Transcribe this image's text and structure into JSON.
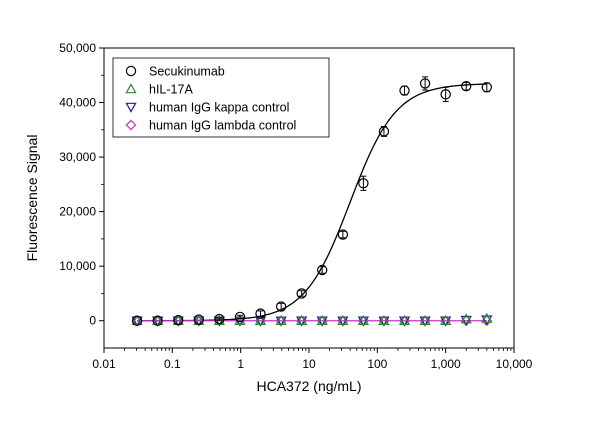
{
  "chart_data": {
    "type": "scatter",
    "xlabel": "HCA372 (ng/mL)",
    "ylabel": "Fluorescence Signal",
    "xscale": "log",
    "xlim": [
      0.01,
      10000
    ],
    "ylim": [
      -5000,
      50000
    ],
    "x_ticks": [
      0.01,
      0.1,
      1,
      10,
      100,
      1000,
      10000
    ],
    "x_tick_labels": [
      "0.01",
      "0.1",
      "1",
      "10",
      "100",
      "1,000",
      "10,000"
    ],
    "y_ticks": [
      0,
      10000,
      20000,
      30000,
      40000,
      50000
    ],
    "y_tick_labels": [
      "0",
      "10,000",
      "20,000",
      "30,000",
      "40,000",
      "50,000"
    ],
    "legend_position": "top-left",
    "grid": false,
    "x": [
      0.0305,
      0.061,
      0.122,
      0.244,
      0.488,
      0.977,
      1.95,
      3.91,
      7.81,
      15.6,
      31.3,
      62.5,
      125,
      250,
      500,
      1000,
      2000,
      4000
    ],
    "series": [
      {
        "name": "Secukinumab",
        "marker": "circle",
        "color": "#000000",
        "values": [
          0,
          0,
          100,
          200,
          300,
          700,
          1300,
          2600,
          5000,
          9300,
          15800,
          25200,
          34700,
          42200,
          43500,
          41500,
          43000,
          42800
        ],
        "errors": [
          0,
          0,
          0,
          0,
          200,
          300,
          500,
          600,
          500,
          600,
          600,
          1300,
          900,
          800,
          1200,
          1300,
          700,
          800
        ]
      },
      {
        "name": "hIL-17A",
        "marker": "triangle-up",
        "color": "#2e8b2e",
        "values": [
          0,
          0,
          0,
          0,
          0,
          0,
          0,
          0,
          0,
          0,
          0,
          0,
          0,
          0,
          0,
          0,
          300,
          400
        ]
      },
      {
        "name": "human IgG kappa control",
        "marker": "triangle-down",
        "color": "#1f1f99",
        "values": [
          0,
          0,
          0,
          0,
          0,
          0,
          0,
          0,
          0,
          0,
          0,
          0,
          0,
          0,
          0,
          0,
          100,
          200
        ]
      },
      {
        "name": "human IgG lambda control",
        "marker": "diamond",
        "color": "#cc33cc",
        "values": [
          0,
          0,
          0,
          0,
          0,
          0,
          0,
          0,
          0,
          0,
          0,
          0,
          0,
          0,
          0,
          0,
          0,
          0
        ]
      }
    ],
    "fit": {
      "series": "Secukinumab",
      "model": "4PL",
      "bottom": 0,
      "top": 43500,
      "ec50": 40,
      "hill": 1.3,
      "color": "#000000"
    },
    "control_fit": {
      "color": "#cc33cc",
      "value": 0
    }
  }
}
